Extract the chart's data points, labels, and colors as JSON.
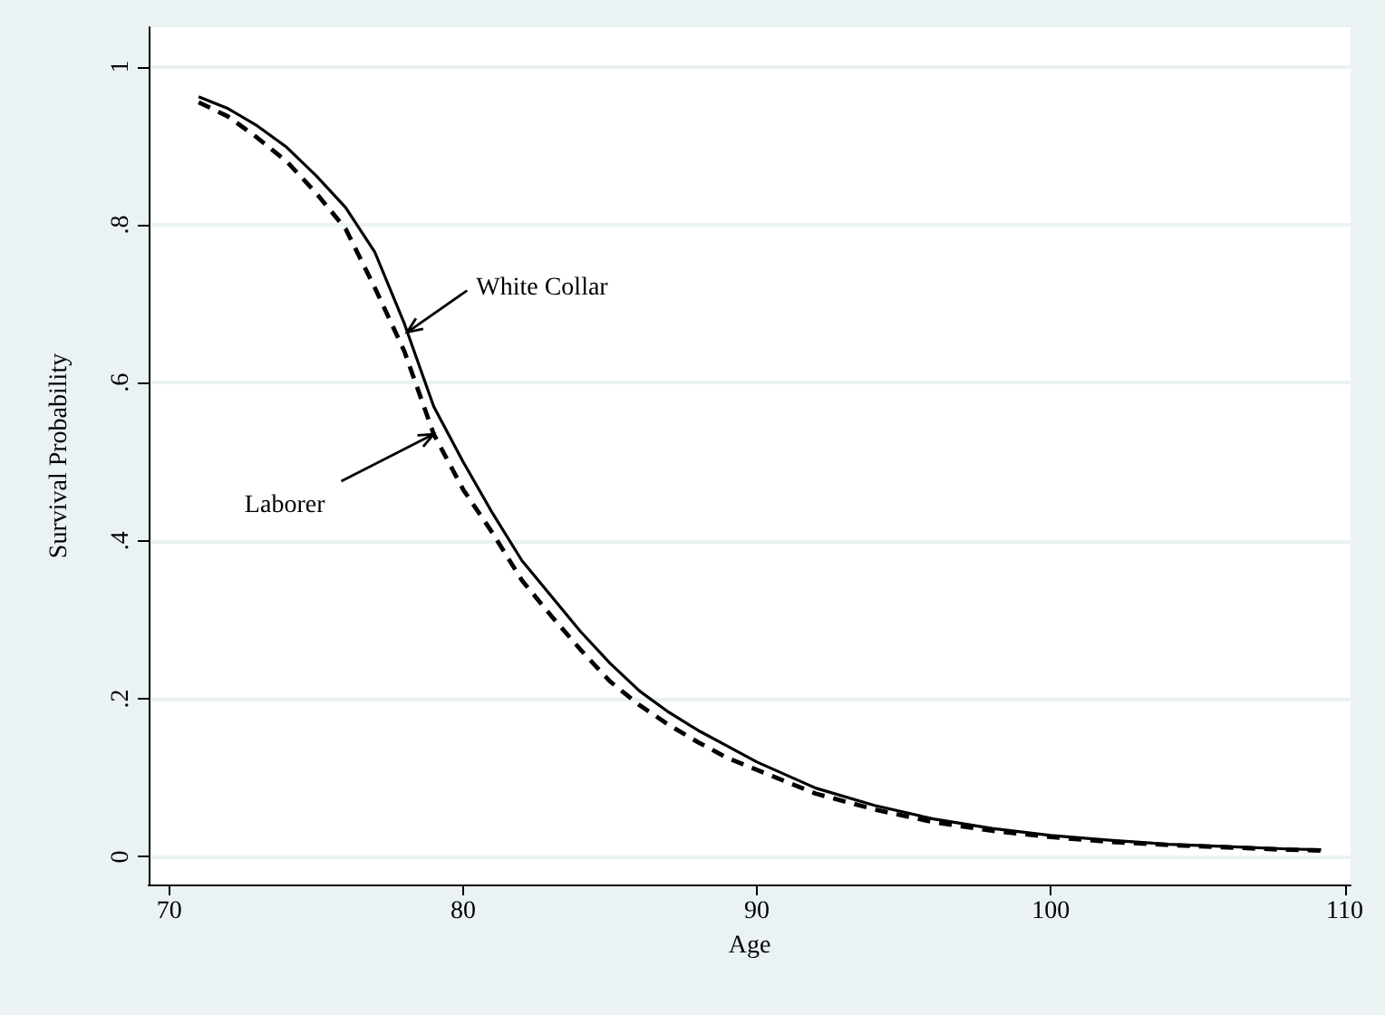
{
  "chart_data": {
    "type": "line",
    "xlabel": "Age",
    "ylabel": "Survival Probability",
    "xlim": [
      69.3,
      110.2
    ],
    "ylim": [
      -0.035,
      1.05
    ],
    "xticks": [
      70,
      80,
      90,
      100,
      110
    ],
    "yticks": [
      0,
      {
        "value": 0.2,
        "label": ".2"
      },
      {
        "value": 0.4,
        "label": ".4"
      },
      {
        "value": 0.6,
        "label": ".6"
      },
      {
        "value": 0.8,
        "label": ".8"
      },
      1
    ],
    "grid": "y",
    "marker": "none",
    "series": [
      {
        "color": "#000000",
        "line_style": "solid",
        "x": [
          71,
          72,
          73,
          74,
          75,
          76,
          77,
          78,
          79,
          80,
          81,
          82,
          83,
          84,
          85,
          86,
          87,
          88,
          89,
          90,
          92,
          94,
          96,
          98,
          100,
          102,
          104,
          106,
          108,
          109.2
        ],
        "values": [
          0.962,
          0.947,
          0.925,
          0.898,
          0.862,
          0.822,
          0.765,
          0.675,
          0.57,
          0.5,
          0.435,
          0.375,
          0.33,
          0.285,
          0.245,
          0.21,
          0.183,
          0.16,
          0.14,
          0.12,
          0.087,
          0.065,
          0.048,
          0.036,
          0.027,
          0.021,
          0.016,
          0.013,
          0.01,
          0.009
        ]
      },
      {
        "color": "#000000",
        "line_style": "dashed",
        "x": [
          71,
          72,
          73,
          74,
          75,
          76,
          77,
          78,
          79,
          80,
          81,
          82,
          83,
          84,
          85,
          86,
          87,
          88,
          89,
          90,
          92,
          94,
          96,
          98,
          100,
          102,
          104,
          106,
          108,
          109.2
        ],
        "values": [
          0.955,
          0.937,
          0.91,
          0.88,
          0.84,
          0.795,
          0.72,
          0.64,
          0.535,
          0.465,
          0.41,
          0.35,
          0.305,
          0.262,
          0.222,
          0.192,
          0.167,
          0.145,
          0.125,
          0.11,
          0.08,
          0.06,
          0.044,
          0.033,
          0.025,
          0.019,
          0.015,
          0.012,
          0.009,
          0.008
        ]
      }
    ],
    "annotations": [
      {
        "text": "White Collar",
        "x": 78.1,
        "y": 0.664
      },
      {
        "text": "Laborer",
        "x": 79,
        "y": 0.535
      }
    ]
  }
}
